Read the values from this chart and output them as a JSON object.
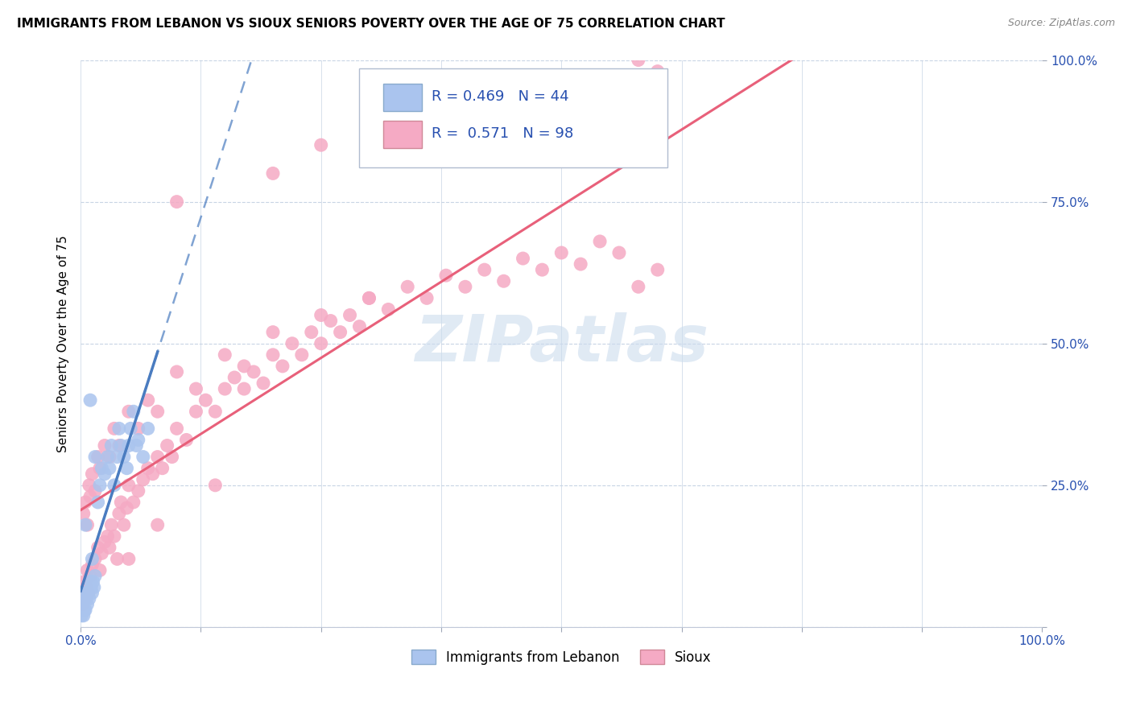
{
  "title": "IMMIGRANTS FROM LEBANON VS SIOUX SENIORS POVERTY OVER THE AGE OF 75 CORRELATION CHART",
  "source": "Source: ZipAtlas.com",
  "ylabel": "Seniors Poverty Over the Age of 75",
  "xlim": [
    0.0,
    1.0
  ],
  "ylim": [
    0.0,
    1.0
  ],
  "legend_label1": "Immigrants from Lebanon",
  "legend_label2": "Sioux",
  "R1": "0.469",
  "N1": "44",
  "R2": "0.571",
  "N2": "98",
  "blue_color": "#aac4ee",
  "pink_color": "#f5aac4",
  "blue_line_color": "#4a7cc0",
  "pink_line_color": "#e8607a",
  "watermark_color": "#ccdcee",
  "legend_text_color": "#2850b0",
  "blue_scatter": [
    [
      0.005,
      0.18
    ],
    [
      0.01,
      0.4
    ],
    [
      0.012,
      0.12
    ],
    [
      0.015,
      0.3
    ],
    [
      0.018,
      0.22
    ],
    [
      0.02,
      0.25
    ],
    [
      0.022,
      0.28
    ],
    [
      0.025,
      0.27
    ],
    [
      0.028,
      0.3
    ],
    [
      0.03,
      0.28
    ],
    [
      0.032,
      0.32
    ],
    [
      0.035,
      0.25
    ],
    [
      0.038,
      0.3
    ],
    [
      0.04,
      0.35
    ],
    [
      0.042,
      0.32
    ],
    [
      0.045,
      0.3
    ],
    [
      0.048,
      0.28
    ],
    [
      0.05,
      0.32
    ],
    [
      0.052,
      0.35
    ],
    [
      0.055,
      0.38
    ],
    [
      0.058,
      0.32
    ],
    [
      0.06,
      0.33
    ],
    [
      0.065,
      0.3
    ],
    [
      0.07,
      0.35
    ],
    [
      0.002,
      0.05
    ],
    [
      0.003,
      0.04
    ],
    [
      0.004,
      0.06
    ],
    [
      0.005,
      0.03
    ],
    [
      0.006,
      0.05
    ],
    [
      0.007,
      0.04
    ],
    [
      0.008,
      0.06
    ],
    [
      0.009,
      0.05
    ],
    [
      0.01,
      0.08
    ],
    [
      0.011,
      0.07
    ],
    [
      0.012,
      0.06
    ],
    [
      0.013,
      0.08
    ],
    [
      0.014,
      0.07
    ],
    [
      0.015,
      0.09
    ],
    [
      0.001,
      0.02
    ],
    [
      0.002,
      0.03
    ],
    [
      0.003,
      0.02
    ],
    [
      0.004,
      0.03
    ],
    [
      0.001,
      0.04
    ],
    [
      0.002,
      0.06
    ]
  ],
  "pink_scatter": [
    [
      0.002,
      0.04
    ],
    [
      0.004,
      0.08
    ],
    [
      0.005,
      0.05
    ],
    [
      0.006,
      0.07
    ],
    [
      0.007,
      0.1
    ],
    [
      0.008,
      0.06
    ],
    [
      0.01,
      0.09
    ],
    [
      0.012,
      0.11
    ],
    [
      0.015,
      0.12
    ],
    [
      0.018,
      0.14
    ],
    [
      0.02,
      0.1
    ],
    [
      0.022,
      0.13
    ],
    [
      0.025,
      0.15
    ],
    [
      0.028,
      0.16
    ],
    [
      0.03,
      0.14
    ],
    [
      0.032,
      0.18
    ],
    [
      0.035,
      0.16
    ],
    [
      0.038,
      0.12
    ],
    [
      0.04,
      0.2
    ],
    [
      0.042,
      0.22
    ],
    [
      0.045,
      0.18
    ],
    [
      0.048,
      0.21
    ],
    [
      0.05,
      0.25
    ],
    [
      0.055,
      0.22
    ],
    [
      0.06,
      0.24
    ],
    [
      0.065,
      0.26
    ],
    [
      0.07,
      0.28
    ],
    [
      0.075,
      0.27
    ],
    [
      0.08,
      0.3
    ],
    [
      0.085,
      0.28
    ],
    [
      0.09,
      0.32
    ],
    [
      0.095,
      0.3
    ],
    [
      0.1,
      0.35
    ],
    [
      0.11,
      0.33
    ],
    [
      0.12,
      0.38
    ],
    [
      0.13,
      0.4
    ],
    [
      0.14,
      0.38
    ],
    [
      0.15,
      0.42
    ],
    [
      0.16,
      0.44
    ],
    [
      0.17,
      0.42
    ],
    [
      0.18,
      0.45
    ],
    [
      0.19,
      0.43
    ],
    [
      0.2,
      0.48
    ],
    [
      0.21,
      0.46
    ],
    [
      0.22,
      0.5
    ],
    [
      0.23,
      0.48
    ],
    [
      0.24,
      0.52
    ],
    [
      0.25,
      0.5
    ],
    [
      0.26,
      0.54
    ],
    [
      0.27,
      0.52
    ],
    [
      0.28,
      0.55
    ],
    [
      0.29,
      0.53
    ],
    [
      0.3,
      0.58
    ],
    [
      0.32,
      0.56
    ],
    [
      0.34,
      0.6
    ],
    [
      0.36,
      0.58
    ],
    [
      0.38,
      0.62
    ],
    [
      0.4,
      0.6
    ],
    [
      0.42,
      0.63
    ],
    [
      0.44,
      0.61
    ],
    [
      0.46,
      0.65
    ],
    [
      0.48,
      0.63
    ],
    [
      0.5,
      0.66
    ],
    [
      0.52,
      0.64
    ],
    [
      0.54,
      0.68
    ],
    [
      0.56,
      0.66
    ],
    [
      0.58,
      0.6
    ],
    [
      0.6,
      0.63
    ],
    [
      0.003,
      0.2
    ],
    [
      0.005,
      0.22
    ],
    [
      0.007,
      0.18
    ],
    [
      0.009,
      0.25
    ],
    [
      0.01,
      0.23
    ],
    [
      0.012,
      0.27
    ],
    [
      0.015,
      0.24
    ],
    [
      0.018,
      0.3
    ],
    [
      0.02,
      0.28
    ],
    [
      0.025,
      0.32
    ],
    [
      0.03,
      0.3
    ],
    [
      0.035,
      0.35
    ],
    [
      0.04,
      0.32
    ],
    [
      0.05,
      0.38
    ],
    [
      0.06,
      0.35
    ],
    [
      0.07,
      0.4
    ],
    [
      0.08,
      0.38
    ],
    [
      0.1,
      0.45
    ],
    [
      0.12,
      0.42
    ],
    [
      0.15,
      0.48
    ],
    [
      0.17,
      0.46
    ],
    [
      0.2,
      0.52
    ],
    [
      0.25,
      0.55
    ],
    [
      0.3,
      0.58
    ],
    [
      0.1,
      0.75
    ],
    [
      0.2,
      0.8
    ],
    [
      0.58,
      1.0
    ],
    [
      0.6,
      0.98
    ],
    [
      0.25,
      0.85
    ],
    [
      0.05,
      0.12
    ],
    [
      0.08,
      0.18
    ],
    [
      0.14,
      0.25
    ]
  ]
}
